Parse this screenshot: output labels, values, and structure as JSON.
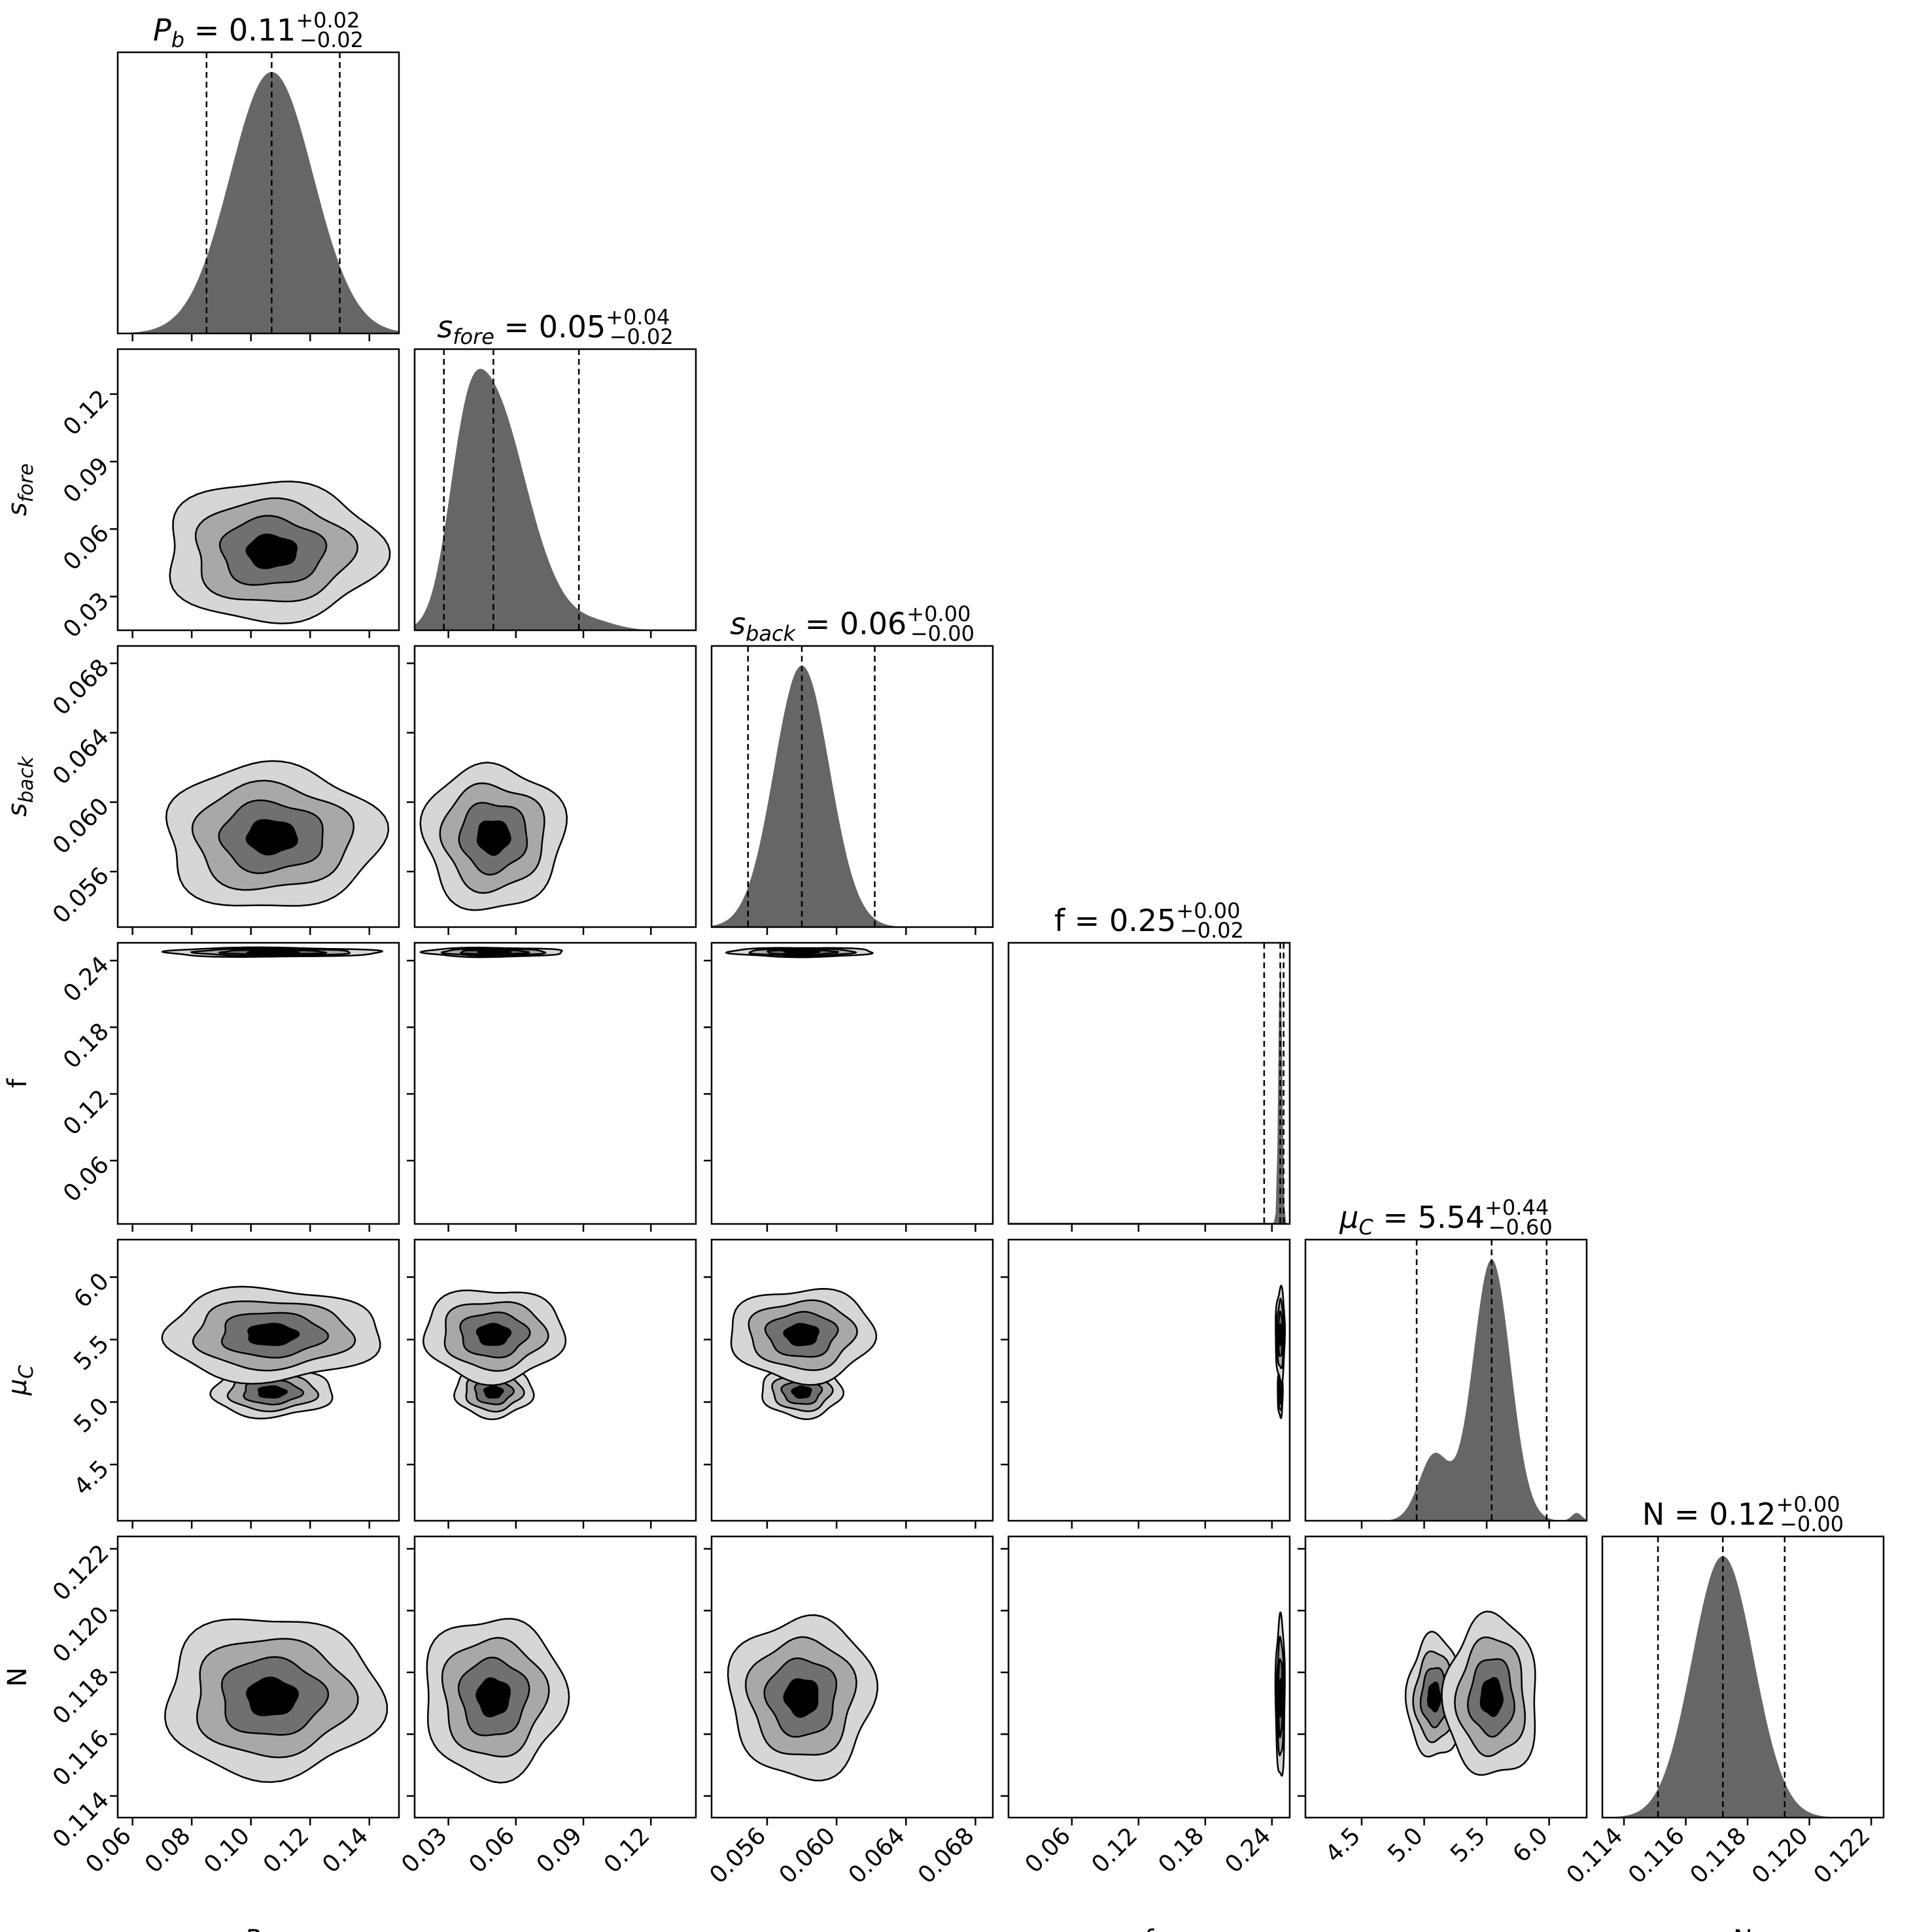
{
  "chart_data": {
    "type": "corner",
    "parameters": [
      {
        "key": "Pb",
        "label": "P",
        "label_sub": "b",
        "label_italic": true,
        "range": [
          0.055,
          0.15
        ],
        "ticks": [
          "0.06",
          "0.08",
          "0.10",
          "0.12",
          "0.14"
        ],
        "tick_values": [
          0.06,
          0.08,
          0.1,
          0.12,
          0.14
        ],
        "median": 0.107,
        "q16": 0.085,
        "q84": 0.13,
        "sigma": 0.014,
        "title_value": "0.11",
        "err_plus": "+0.02",
        "err_minus": "−0.02"
      },
      {
        "key": "sfore",
        "label": "s",
        "label_sub": "fore",
        "label_italic": true,
        "range": [
          0.015,
          0.14
        ],
        "ticks": [
          "0.03",
          "0.06",
          "0.09",
          "0.12"
        ],
        "tick_values": [
          0.03,
          0.06,
          0.09,
          0.12
        ],
        "median": 0.05,
        "q16": 0.028,
        "q84": 0.088,
        "sigma": 0.012,
        "title_value": "0.05",
        "err_plus": "+0.04",
        "err_minus": "−0.02"
      },
      {
        "key": "sback",
        "label": "s",
        "label_sub": "back",
        "label_italic": true,
        "range": [
          0.0528,
          0.069
        ],
        "ticks": [
          "0.056",
          "0.060",
          "0.064",
          "0.068"
        ],
        "tick_values": [
          0.056,
          0.06,
          0.064,
          0.068
        ],
        "median": 0.058,
        "q16": 0.0549,
        "q84": 0.0622,
        "sigma": 0.0016,
        "title_value": "0.06",
        "err_plus": "+0.00",
        "err_minus": "−0.00"
      },
      {
        "key": "f",
        "label": "f",
        "label_sub": "",
        "label_italic": false,
        "range": [
          0.003,
          0.256
        ],
        "ticks": [
          "0.06",
          "0.12",
          "0.18",
          "0.24"
        ],
        "tick_values": [
          0.06,
          0.12,
          0.18,
          0.24
        ],
        "median": 0.2475,
        "q16": 0.233,
        "q84": 0.2505,
        "sigma": 0.0016,
        "title_value": "0.25",
        "err_plus": "+0.00",
        "err_minus": "−0.02"
      },
      {
        "key": "muC",
        "label": "μ",
        "label_sub": "C",
        "label_italic": true,
        "range": [
          4.05,
          6.3
        ],
        "ticks": [
          "4.5",
          "5.0",
          "5.5",
          "6.0"
        ],
        "tick_values": [
          4.5,
          5.0,
          5.5,
          6.0
        ],
        "median": 5.54,
        "q16": 4.94,
        "q84": 5.98,
        "sigma": 0.15,
        "title_value": "5.54",
        "err_plus": "+0.44",
        "err_minus": "−0.60"
      },
      {
        "key": "N",
        "label": "N",
        "label_sub": "",
        "label_italic": false,
        "range": [
          0.1133,
          0.1224
        ],
        "ticks": [
          "0.114",
          "0.116",
          "0.118",
          "0.120",
          "0.122"
        ],
        "tick_values": [
          0.114,
          0.116,
          0.118,
          0.12,
          0.122
        ],
        "median": 0.1172,
        "q16": 0.1151,
        "q84": 0.1192,
        "sigma": 0.001,
        "title_value": "0.12",
        "err_plus": "+0.00",
        "err_minus": "−0.00"
      }
    ],
    "muC_secondary_mode": {
      "center": 5.08,
      "weight": 0.25,
      "sigma": 0.12
    },
    "muC_tail_mode": {
      "center": 6.22,
      "weight": 0.03,
      "sigma": 0.04
    },
    "histogram_fill": "#666666",
    "contour_fills": [
      "#d6d6d6",
      "#a8a8a8",
      "#707070",
      "#000000"
    ],
    "contour_stroke": "#000000",
    "quantile_line": "dashed"
  }
}
